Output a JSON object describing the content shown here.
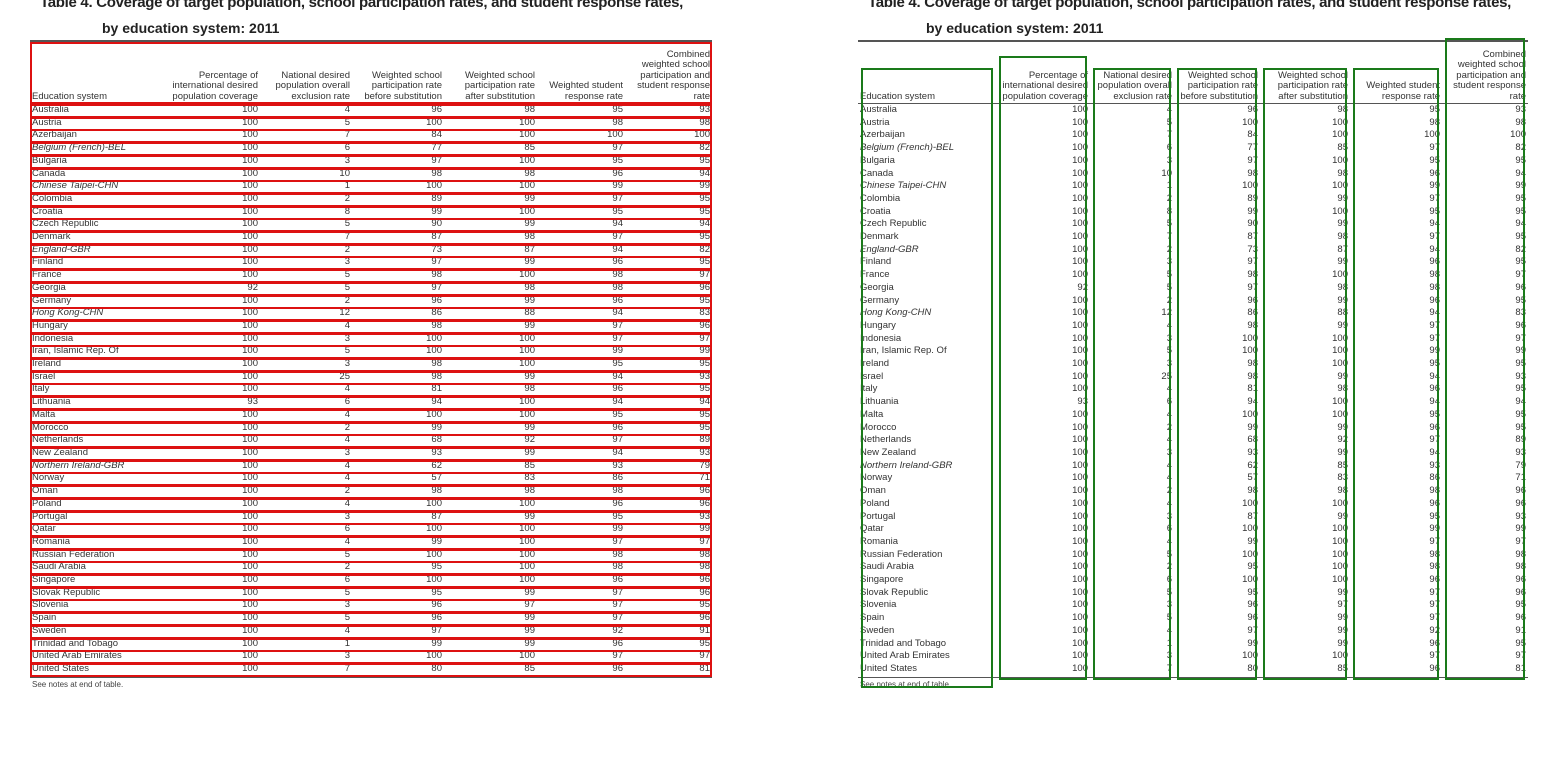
{
  "table": {
    "title_fragment": "Table 4. Coverage of target population, school participation rates, and student response rates,",
    "subtitle": "by education system: 2011",
    "columns": [
      "Education system",
      "Percentage of international desired population coverage",
      "National desired population overall exclusion rate",
      "Weighted school participation rate before substitution",
      "Weighted school participation rate after substitution",
      "Weighted student response rate",
      "Combined weighted school participation and student response rate"
    ],
    "rows": [
      {
        "name": "Australia",
        "italic": false,
        "v": [
          "100",
          "4",
          "96",
          "98",
          "95",
          "93"
        ]
      },
      {
        "name": "Austria",
        "italic": false,
        "v": [
          "100",
          "5",
          "100",
          "100",
          "98",
          "98"
        ]
      },
      {
        "name": "Azerbaijan",
        "italic": false,
        "v": [
          "100",
          "7",
          "84",
          "100",
          "100",
          "100"
        ]
      },
      {
        "name": "Belgium (French)-BEL",
        "italic": true,
        "v": [
          "100",
          "6",
          "77",
          "85",
          "97",
          "82"
        ]
      },
      {
        "name": "Bulgaria",
        "italic": false,
        "v": [
          "100",
          "3",
          "97",
          "100",
          "95",
          "95"
        ]
      },
      {
        "name": "Canada",
        "italic": false,
        "v": [
          "100",
          "10",
          "98",
          "98",
          "96",
          "94"
        ]
      },
      {
        "name": "Chinese Taipei-CHN",
        "italic": true,
        "v": [
          "100",
          "1",
          "100",
          "100",
          "99",
          "99"
        ]
      },
      {
        "name": "Colombia",
        "italic": false,
        "v": [
          "100",
          "2",
          "89",
          "99",
          "97",
          "95"
        ]
      },
      {
        "name": "Croatia",
        "italic": false,
        "v": [
          "100",
          "8",
          "99",
          "100",
          "95",
          "95"
        ]
      },
      {
        "name": "Czech Republic",
        "italic": false,
        "v": [
          "100",
          "5",
          "90",
          "99",
          "94",
          "94"
        ]
      },
      {
        "name": "Denmark",
        "italic": false,
        "v": [
          "100",
          "7",
          "87",
          "98",
          "97",
          "95"
        ]
      },
      {
        "name": "England-GBR",
        "italic": true,
        "v": [
          "100",
          "2",
          "73",
          "87",
          "94",
          "82"
        ]
      },
      {
        "name": "Finland",
        "italic": false,
        "v": [
          "100",
          "3",
          "97",
          "99",
          "96",
          "95"
        ]
      },
      {
        "name": "France",
        "italic": false,
        "v": [
          "100",
          "5",
          "98",
          "100",
          "98",
          "97"
        ]
      },
      {
        "name": "Georgia",
        "italic": false,
        "v": [
          "92",
          "5",
          "97",
          "98",
          "98",
          "96"
        ]
      },
      {
        "name": "Germany",
        "italic": false,
        "v": [
          "100",
          "2",
          "96",
          "99",
          "96",
          "95"
        ]
      },
      {
        "name": "Hong Kong-CHN",
        "italic": true,
        "v": [
          "100",
          "12",
          "86",
          "88",
          "94",
          "83"
        ]
      },
      {
        "name": "Hungary",
        "italic": false,
        "v": [
          "100",
          "4",
          "98",
          "99",
          "97",
          "96"
        ]
      },
      {
        "name": "Indonesia",
        "italic": false,
        "v": [
          "100",
          "3",
          "100",
          "100",
          "97",
          "97"
        ]
      },
      {
        "name": "Iran, Islamic Rep. Of",
        "italic": false,
        "v": [
          "100",
          "5",
          "100",
          "100",
          "99",
          "99"
        ]
      },
      {
        "name": "Ireland",
        "italic": false,
        "v": [
          "100",
          "3",
          "98",
          "100",
          "95",
          "95"
        ]
      },
      {
        "name": "Israel",
        "italic": false,
        "v": [
          "100",
          "25",
          "98",
          "99",
          "94",
          "93"
        ]
      },
      {
        "name": "Italy",
        "italic": false,
        "v": [
          "100",
          "4",
          "81",
          "98",
          "96",
          "95"
        ]
      },
      {
        "name": "Lithuania",
        "italic": false,
        "v": [
          "93",
          "6",
          "94",
          "100",
          "94",
          "94"
        ]
      },
      {
        "name": "Malta",
        "italic": false,
        "v": [
          "100",
          "4",
          "100",
          "100",
          "95",
          "95"
        ]
      },
      {
        "name": "Morocco",
        "italic": false,
        "v": [
          "100",
          "2",
          "99",
          "99",
          "96",
          "95"
        ]
      },
      {
        "name": "Netherlands",
        "italic": false,
        "v": [
          "100",
          "4",
          "68",
          "92",
          "97",
          "89"
        ]
      },
      {
        "name": "New Zealand",
        "italic": false,
        "v": [
          "100",
          "3",
          "93",
          "99",
          "94",
          "93"
        ]
      },
      {
        "name": "Northern Ireland-GBR",
        "italic": true,
        "v": [
          "100",
          "4",
          "62",
          "85",
          "93",
          "79"
        ]
      },
      {
        "name": "Norway",
        "italic": false,
        "v": [
          "100",
          "4",
          "57",
          "83",
          "86",
          "71"
        ]
      },
      {
        "name": "Oman",
        "italic": false,
        "v": [
          "100",
          "2",
          "98",
          "98",
          "98",
          "96"
        ]
      },
      {
        "name": "Poland",
        "italic": false,
        "v": [
          "100",
          "4",
          "100",
          "100",
          "96",
          "96"
        ]
      },
      {
        "name": "Portugal",
        "italic": false,
        "v": [
          "100",
          "3",
          "87",
          "99",
          "95",
          "93"
        ]
      },
      {
        "name": "Qatar",
        "italic": false,
        "v": [
          "100",
          "6",
          "100",
          "100",
          "99",
          "99"
        ]
      },
      {
        "name": "Romania",
        "italic": false,
        "v": [
          "100",
          "4",
          "99",
          "100",
          "97",
          "97"
        ]
      },
      {
        "name": "Russian Federation",
        "italic": false,
        "v": [
          "100",
          "5",
          "100",
          "100",
          "98",
          "98"
        ]
      },
      {
        "name": "Saudi Arabia",
        "italic": false,
        "v": [
          "100",
          "2",
          "95",
          "100",
          "98",
          "98"
        ]
      },
      {
        "name": "Singapore",
        "italic": false,
        "v": [
          "100",
          "6",
          "100",
          "100",
          "96",
          "96"
        ]
      },
      {
        "name": "Slovak Republic",
        "italic": false,
        "v": [
          "100",
          "5",
          "95",
          "99",
          "97",
          "96"
        ]
      },
      {
        "name": "Slovenia",
        "italic": false,
        "v": [
          "100",
          "3",
          "96",
          "97",
          "97",
          "95"
        ]
      },
      {
        "name": "Spain",
        "italic": false,
        "v": [
          "100",
          "5",
          "96",
          "99",
          "97",
          "96"
        ]
      },
      {
        "name": "Sweden",
        "italic": false,
        "v": [
          "100",
          "4",
          "97",
          "99",
          "92",
          "91"
        ]
      },
      {
        "name": "Trinidad and Tobago",
        "italic": false,
        "v": [
          "100",
          "1",
          "99",
          "99",
          "96",
          "95"
        ]
      },
      {
        "name": "United Arab Emirates",
        "italic": false,
        "v": [
          "100",
          "3",
          "100",
          "100",
          "97",
          "97"
        ]
      },
      {
        "name": "United States",
        "italic": false,
        "v": [
          "100",
          "7",
          "80",
          "85",
          "96",
          "81"
        ]
      }
    ],
    "note": "See notes at end of table."
  },
  "annotation_colors": {
    "row_boxes": "#dd1111",
    "column_boxes": "#1a7a1a"
  }
}
